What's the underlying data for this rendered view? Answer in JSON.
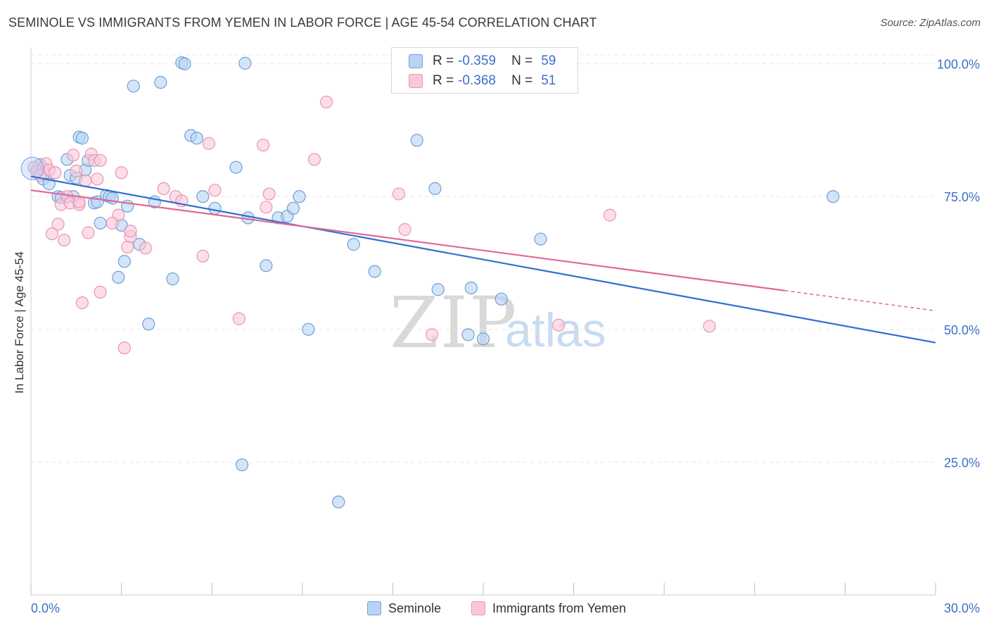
{
  "title": "SEMINOLE VS IMMIGRANTS FROM YEMEN IN LABOR FORCE | AGE 45-54 CORRELATION CHART",
  "source": "Source: ZipAtlas.com",
  "watermark": {
    "zip": "ZIP",
    "atlas": "atlas"
  },
  "legend": {
    "r_label": "R =",
    "n_label": "N =",
    "rows": [
      {
        "r": "-0.359",
        "n": "59"
      },
      {
        "r": "-0.368",
        "n": "51"
      }
    ]
  },
  "colors": {
    "seminole_fill": "#b8d3f4",
    "seminole_stroke": "#6f9fd8",
    "seminole_line": "#2f6fce",
    "yemen_fill": "#f9c8d8",
    "yemen_stroke": "#eb94b3",
    "yemen_line": "#e0679a",
    "tick_label": "#3d6fc4",
    "grid": "#e6e6e6"
  },
  "chart_data": {
    "type": "scatter",
    "xlabel": "",
    "ylabel": "In Labor Force | Age 45-54",
    "xlim": [
      0,
      30
    ],
    "ylim": [
      0,
      103
    ],
    "x_tick_labels": [
      "0.0%",
      "30.0%"
    ],
    "y_ticks": [
      25,
      50,
      75,
      100
    ],
    "y_tick_labels": [
      "25.0%",
      "50.0%",
      "75.0%",
      "100.0%"
    ],
    "grid": true,
    "legend_position": "top-center",
    "series": [
      {
        "name": "Seminole",
        "trend": {
          "x0": 0,
          "y0": 78.8,
          "x1": 30,
          "y1": 47.5
        },
        "points": [
          [
            0.1,
            80.5
          ],
          [
            0.2,
            79.8
          ],
          [
            0.4,
            78.3
          ],
          [
            0.6,
            77.4
          ],
          [
            0.9,
            75.0
          ],
          [
            1.2,
            82.0
          ],
          [
            1.3,
            79.0
          ],
          [
            1.4,
            75.0
          ],
          [
            1.5,
            78.5
          ],
          [
            1.6,
            86.2
          ],
          [
            1.7,
            86.0
          ],
          [
            1.8,
            80.0
          ],
          [
            1.9,
            81.8
          ],
          [
            2.1,
            73.8
          ],
          [
            2.2,
            74.0
          ],
          [
            2.3,
            70.0
          ],
          [
            2.5,
            75.2
          ],
          [
            2.6,
            75.0
          ],
          [
            2.7,
            74.7
          ],
          [
            2.9,
            59.8
          ],
          [
            3.0,
            69.6
          ],
          [
            3.1,
            62.8
          ],
          [
            3.2,
            73.2
          ],
          [
            3.4,
            95.8
          ],
          [
            3.6,
            66.0
          ],
          [
            3.9,
            51.0
          ],
          [
            4.1,
            74.0
          ],
          [
            4.3,
            96.5
          ],
          [
            4.7,
            59.5
          ],
          [
            5.0,
            100.2
          ],
          [
            5.1,
            100.0
          ],
          [
            5.3,
            86.5
          ],
          [
            5.5,
            86.0
          ],
          [
            5.7,
            75.0
          ],
          [
            6.1,
            72.8
          ],
          [
            6.8,
            80.5
          ],
          [
            7.0,
            24.5
          ],
          [
            7.1,
            100.1
          ],
          [
            7.2,
            71.0
          ],
          [
            7.8,
            62.0
          ],
          [
            8.2,
            71.0
          ],
          [
            8.5,
            71.3
          ],
          [
            8.7,
            72.8
          ],
          [
            8.9,
            75.0
          ],
          [
            9.2,
            50.0
          ],
          [
            10.2,
            17.5
          ],
          [
            10.7,
            66.0
          ],
          [
            11.4,
            60.9
          ],
          [
            12.8,
            85.6
          ],
          [
            13.4,
            76.5
          ],
          [
            13.5,
            57.5
          ],
          [
            14.5,
            49.0
          ],
          [
            14.6,
            57.8
          ],
          [
            15.0,
            48.2
          ],
          [
            15.6,
            55.7
          ],
          [
            16.9,
            67.0
          ],
          [
            26.6,
            75.0
          ],
          [
            0.3,
            81.0
          ],
          [
            1.0,
            74.8
          ]
        ]
      },
      {
        "name": "Immigrants from Yemen",
        "trend": {
          "x0": 0,
          "y0": 76.2,
          "x1": 25,
          "y1": 57.3,
          "x_dash_end": 30,
          "y_dash_end": 53.5
        },
        "points": [
          [
            0.1,
            80.5
          ],
          [
            0.2,
            79.8
          ],
          [
            0.4,
            80.3
          ],
          [
            0.5,
            81.2
          ],
          [
            0.6,
            80.0
          ],
          [
            0.7,
            68.0
          ],
          [
            0.8,
            79.5
          ],
          [
            0.9,
            69.8
          ],
          [
            1.0,
            73.5
          ],
          [
            1.1,
            66.8
          ],
          [
            1.2,
            75.0
          ],
          [
            1.3,
            73.8
          ],
          [
            1.4,
            82.8
          ],
          [
            1.5,
            79.8
          ],
          [
            1.6,
            73.5
          ],
          [
            1.7,
            55.0
          ],
          [
            1.8,
            78.0
          ],
          [
            1.9,
            68.2
          ],
          [
            2.0,
            83.0
          ],
          [
            2.1,
            81.8
          ],
          [
            2.2,
            78.3
          ],
          [
            2.3,
            81.8
          ],
          [
            2.3,
            57.0
          ],
          [
            2.9,
            71.5
          ],
          [
            3.0,
            79.5
          ],
          [
            3.1,
            46.5
          ],
          [
            3.2,
            65.5
          ],
          [
            3.3,
            67.5
          ],
          [
            3.3,
            68.5
          ],
          [
            3.8,
            65.3
          ],
          [
            4.4,
            76.5
          ],
          [
            4.8,
            75.0
          ],
          [
            5.0,
            74.2
          ],
          [
            5.7,
            63.8
          ],
          [
            5.9,
            85.0
          ],
          [
            6.1,
            76.2
          ],
          [
            6.9,
            52.0
          ],
          [
            7.7,
            84.7
          ],
          [
            7.8,
            73.0
          ],
          [
            7.9,
            75.5
          ],
          [
            9.4,
            82.0
          ],
          [
            9.8,
            92.8
          ],
          [
            12.2,
            75.5
          ],
          [
            12.4,
            68.8
          ],
          [
            13.3,
            49.0
          ],
          [
            17.5,
            50.8
          ],
          [
            19.2,
            71.5
          ],
          [
            22.5,
            50.6
          ],
          [
            1.6,
            74.0
          ],
          [
            0.3,
            79.0
          ],
          [
            2.7,
            70.0
          ]
        ]
      }
    ]
  },
  "bottom_legend": [
    "Seminole",
    "Immigrants from Yemen"
  ]
}
